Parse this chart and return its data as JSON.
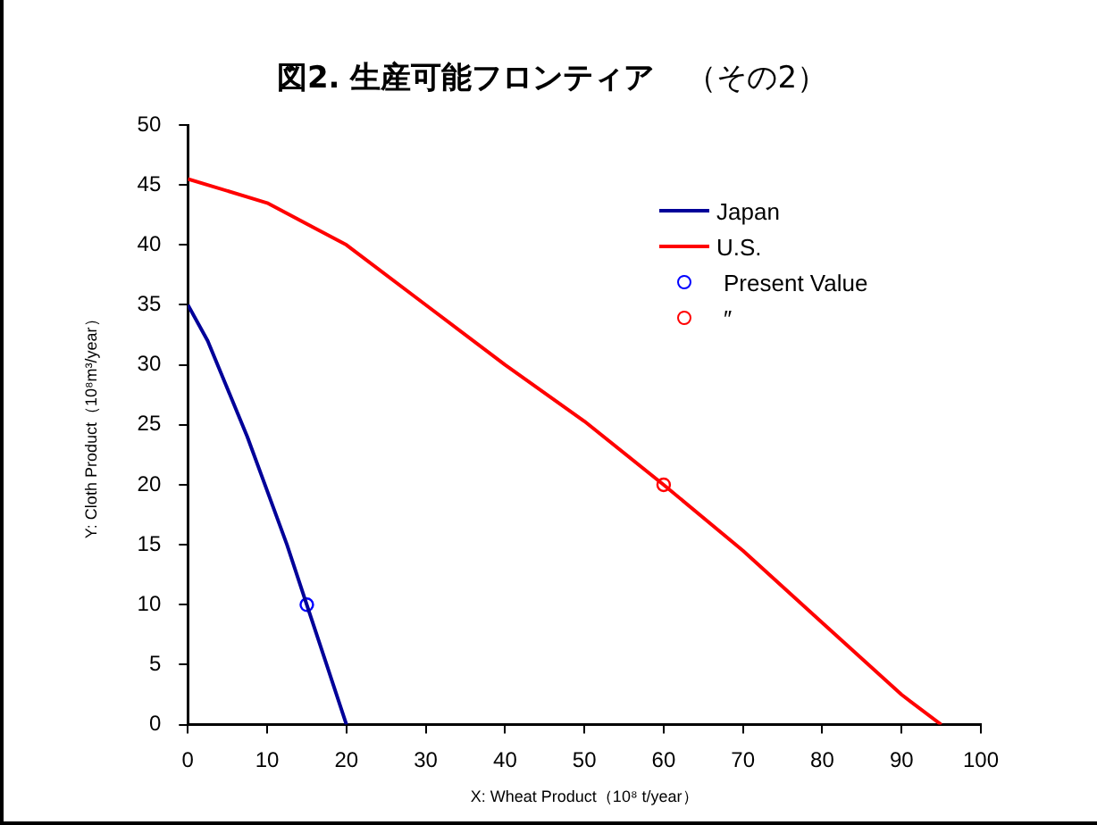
{
  "chart_data": {
    "type": "line",
    "title": "図2. 生産可能フロンティア",
    "subtitle": "（その2）",
    "xlabel": "X: Wheat Product（10⁸ t/year）",
    "ylabel": "Y: Cloth Product（10⁸m³/year）",
    "series": [
      {
        "name": "Japan",
        "color": "#000099",
        "x": [
          0,
          2.5,
          5,
          7.5,
          10,
          12.5,
          15,
          17.5,
          20
        ],
        "values": [
          35,
          32,
          28,
          24,
          19.5,
          15,
          10,
          5,
          0
        ]
      },
      {
        "name": "U.S.",
        "color": "#ff0000",
        "x": [
          0,
          10,
          20,
          30,
          40,
          50,
          60,
          70,
          80,
          90,
          95
        ],
        "values": [
          45.5,
          43.5,
          40,
          35,
          30,
          25.3,
          20,
          14.5,
          8.5,
          2.5,
          0
        ]
      },
      {
        "name": "Present Value",
        "type": "scatter",
        "color": "#0000ff",
        "marker": "circle",
        "x": [
          15
        ],
        "values": [
          10
        ]
      },
      {
        "name": "″",
        "type": "scatter",
        "color": "#ff0000",
        "marker": "circle",
        "x": [
          60
        ],
        "values": [
          20
        ]
      }
    ],
    "xlim": [
      0,
      100
    ],
    "xticks": [
      0,
      10,
      20,
      30,
      40,
      50,
      60,
      70,
      80,
      90,
      100
    ],
    "ylim": [
      0,
      50
    ],
    "yticks": [
      0,
      5,
      10,
      15,
      20,
      25,
      30,
      35,
      40,
      45,
      50
    ],
    "grid": false,
    "legend": "top right",
    "marker": "none",
    "line_style": "solid"
  }
}
